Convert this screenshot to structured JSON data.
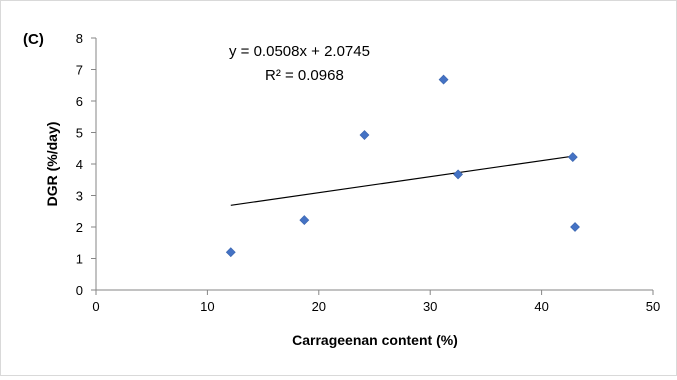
{
  "chart_data": {
    "type": "scatter",
    "panel_label": "(C)",
    "title": "",
    "xlabel": "Carrageenan content (%)",
    "ylabel": "DGR (%/day)",
    "xlim": [
      0,
      50
    ],
    "ylim": [
      0,
      8
    ],
    "x_ticks": [
      0,
      10,
      20,
      30,
      40,
      50
    ],
    "y_ticks": [
      0,
      1,
      2,
      3,
      4,
      5,
      6,
      7,
      8
    ],
    "grid": false,
    "legend": "none",
    "marker_color": "#4472c4",
    "trendline_color": "#000000",
    "series": [
      {
        "x": [
          12.1,
          18.7,
          24.1,
          31.2,
          32.5,
          42.8,
          43.0
        ],
        "y": [
          1.2,
          2.22,
          4.92,
          6.68,
          3.67,
          4.22,
          2.0
        ]
      }
    ],
    "trendline": {
      "slope": 0.0508,
      "intercept": 2.0745,
      "x_range": [
        12.1,
        42.8
      ],
      "equation_text": "y = 0.0508x + 2.0745",
      "r2_text": "R² = 0.0968"
    }
  }
}
